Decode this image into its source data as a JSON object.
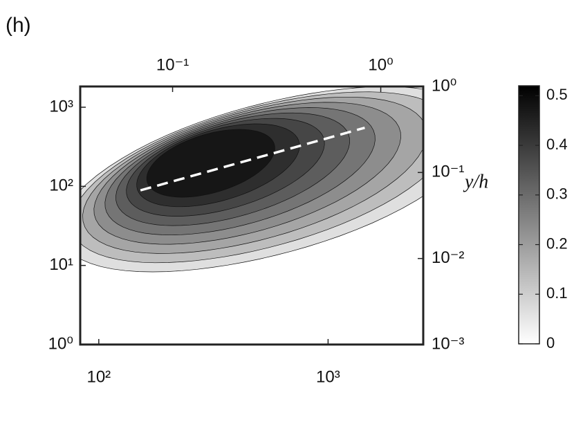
{
  "panel_label": "(h)",
  "chart_data": {
    "type": "contour",
    "x_scale": "log",
    "y_scale": "log",
    "xlim": [
      83,
      2600
    ],
    "xticks": [
      {
        "value": 100,
        "label": "10²"
      },
      {
        "value": 1000,
        "label": "10³"
      }
    ],
    "ylim": [
      1,
      1830
    ],
    "yticks": [
      {
        "value": 1,
        "label": "10⁰"
      },
      {
        "value": 10,
        "label": "10¹"
      },
      {
        "value": 100,
        "label": "10²"
      },
      {
        "value": 1000,
        "label": "10³"
      }
    ],
    "x2lim": [
      0.036,
      1.6
    ],
    "x2ticks": [
      {
        "value": 0.1,
        "label": "10⁻¹"
      },
      {
        "value": 1,
        "label": "10⁰"
      }
    ],
    "y2label": "y/h",
    "y2lim": [
      0.001,
      1
    ],
    "y2ticks": [
      {
        "value": 0.001,
        "label": "10⁻³"
      },
      {
        "value": 0.01,
        "label": "10⁻²"
      },
      {
        "value": 0.1,
        "label": "10⁻¹"
      },
      {
        "value": 1,
        "label": "10⁰"
      }
    ],
    "levels": [
      0.05,
      0.1,
      0.15,
      0.2,
      0.25,
      0.3,
      0.35,
      0.4,
      0.45
    ],
    "colormap": "gray",
    "colorbar": {
      "lim": [
        0,
        0.52
      ],
      "ticks": [
        0,
        0.1,
        0.2,
        0.3,
        0.4,
        0.5
      ]
    },
    "reference_line": {
      "x": [
        152,
        1445
      ],
      "y": [
        89,
        550
      ],
      "color": "#ffffff",
      "style": "dashed"
    }
  }
}
